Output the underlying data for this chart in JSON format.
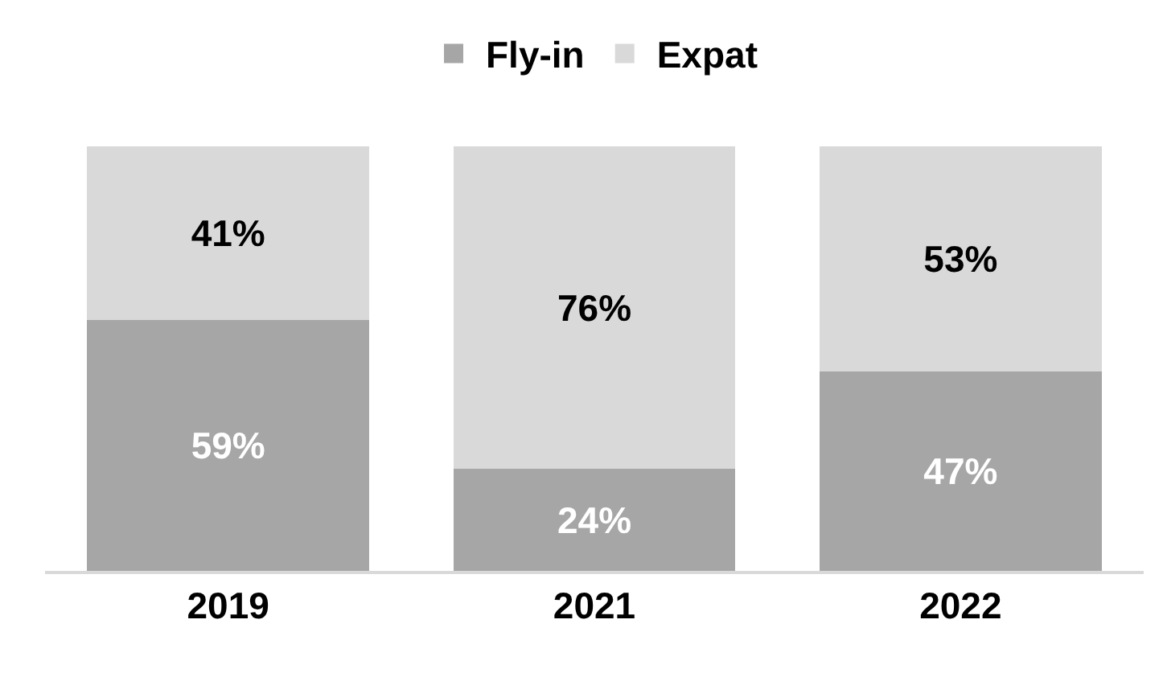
{
  "chart_data": {
    "type": "bar",
    "stacked": true,
    "categories": [
      "2019",
      "2021",
      "2022"
    ],
    "series": [
      {
        "name": "Fly-in",
        "color": "#a6a6a6",
        "values": [
          59,
          24,
          47
        ],
        "value_labels": [
          "59%",
          "24%",
          "47%"
        ]
      },
      {
        "name": "Expat",
        "color": "#d9d9d9",
        "values": [
          41,
          76,
          53
        ],
        "value_labels": [
          "41%",
          "76%",
          "53%"
        ]
      }
    ],
    "legend": "top",
    "grid": false,
    "tick_labels": "x"
  }
}
